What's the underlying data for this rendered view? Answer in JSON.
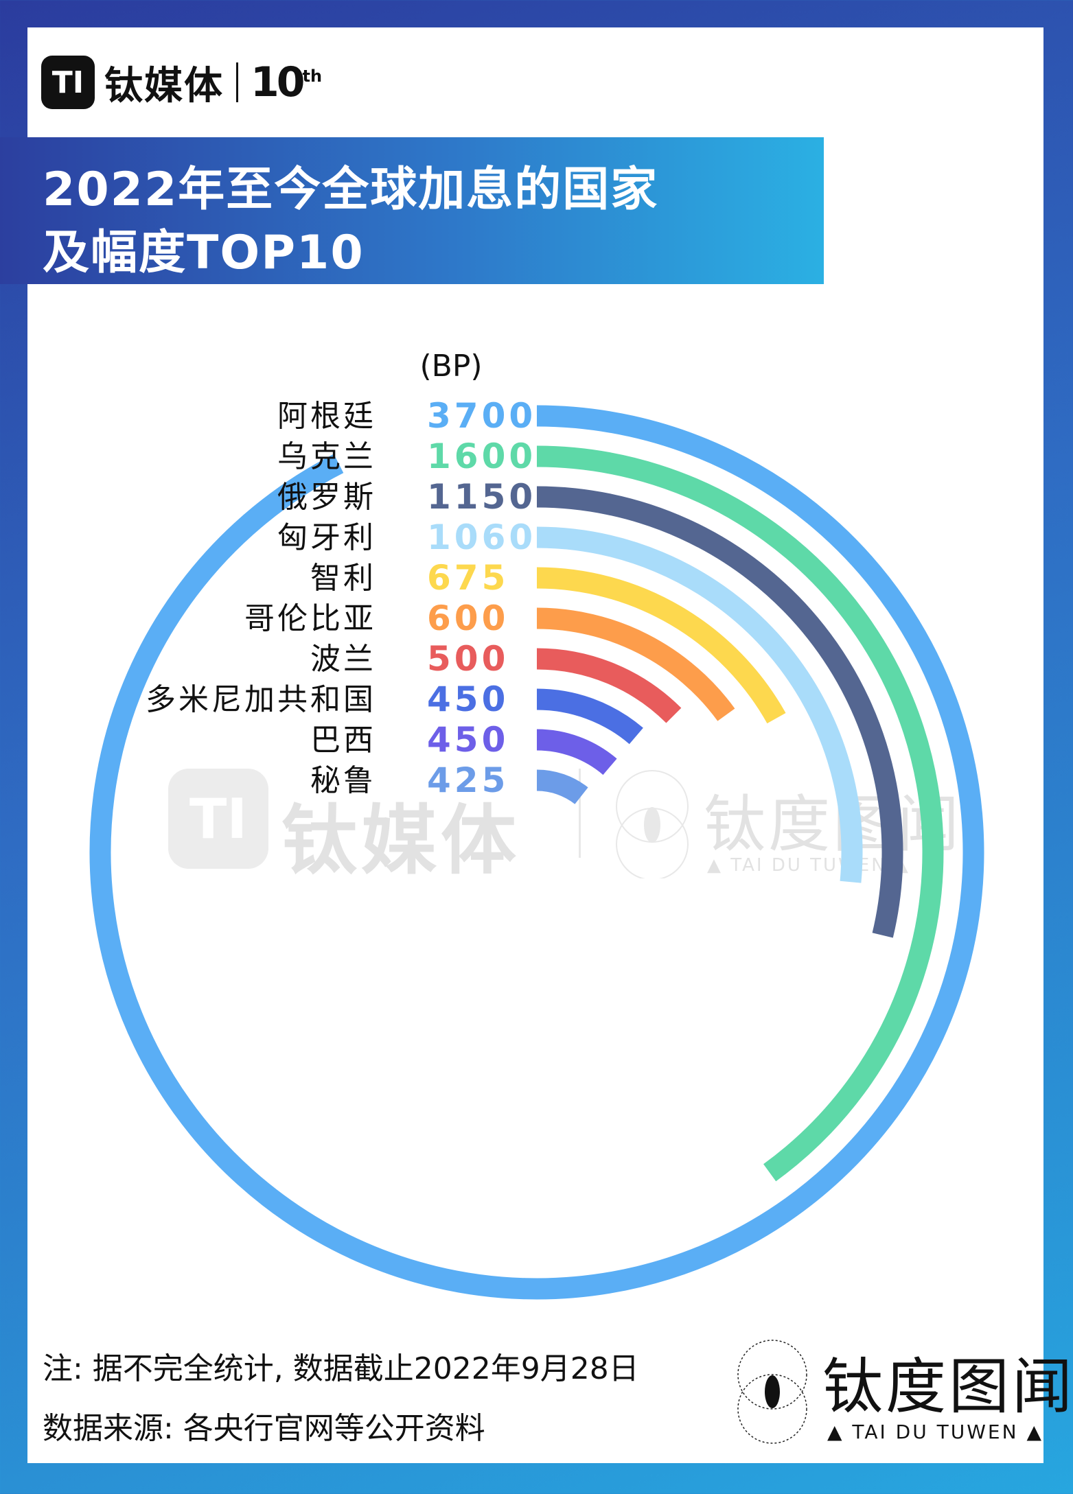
{
  "brand": {
    "logo_mark": "TI",
    "name": "钛媒体",
    "anniversary": "10",
    "anniversary_sup": "th"
  },
  "title": {
    "line1": "2022年至今全球加息的国家",
    "line2": "及幅度TOP10"
  },
  "unit_label": "(BP)",
  "watermark": {
    "brand": "钛媒体",
    "stamp_cn": "钛度图闻",
    "stamp_en": "▲ TAI DU TUWEN ▲"
  },
  "footer": {
    "note": "注: 据不完全统计, 数据截止2022年9月28日",
    "source": "数据来源: 各央行官网等公开资料"
  },
  "stamp": {
    "cn": "钛度图闻",
    "en": "▲ TAI DU TUWEN ▲"
  },
  "colors": {
    "background_gradient": [
      "#2b3c9e",
      "#27a6df"
    ],
    "title_banner_gradient": [
      "#2c3f9f",
      "#2bb0e3"
    ]
  },
  "chart_data": {
    "type": "radial-bar",
    "title": "2022年至今全球加息的国家及幅度TOP10",
    "unit": "BP",
    "categories": [
      "阿根廷",
      "乌克兰",
      "俄罗斯",
      "匈牙利",
      "智利",
      "哥伦比亚",
      "波兰",
      "多米尼加共和国",
      "巴西",
      "秘鲁"
    ],
    "values": [
      3700,
      1600,
      1150,
      1060,
      675,
      600,
      500,
      450,
      450,
      425
    ],
    "value_labels": [
      "3700",
      "1600",
      "1150",
      "1060",
      "675",
      "600",
      "500",
      "450",
      "450",
      "425"
    ],
    "colors": [
      "#5aaef5",
      "#5ed9a8",
      "#546691",
      "#a9dcfa",
      "#fdd84e",
      "#fd9d4b",
      "#e85c5c",
      "#4b6fe3",
      "#6d5fe8",
      "#6c9ce8"
    ],
    "legend": "none",
    "grid": false
  }
}
